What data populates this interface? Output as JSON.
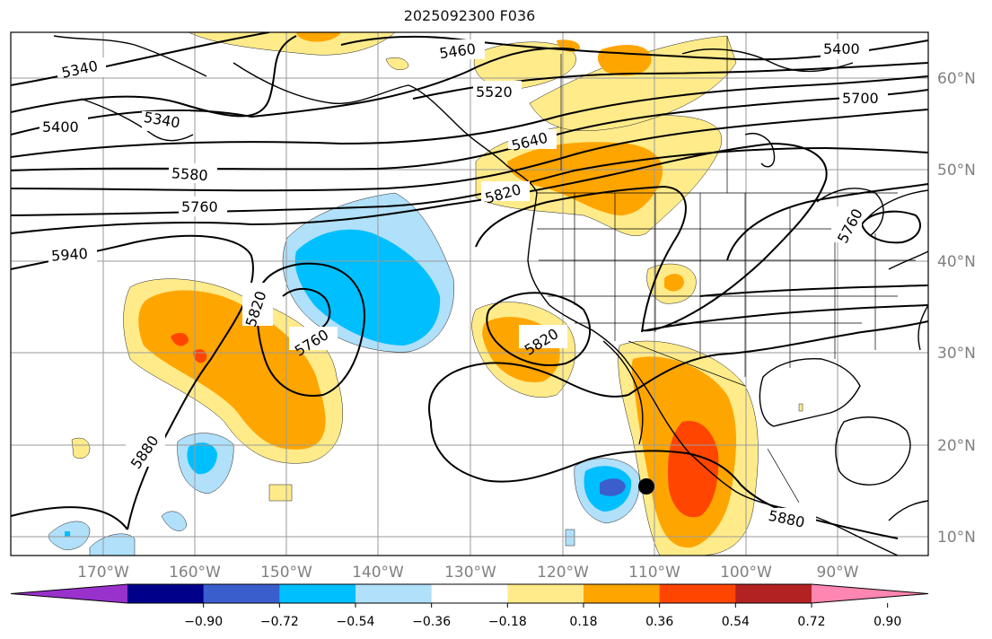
{
  "title": "2025092300 F036",
  "map": {
    "lon_labels": [
      "170°W",
      "160°W",
      "150°W",
      "140°W",
      "130°W",
      "120°W",
      "110°W",
      "100°W",
      "90°W"
    ],
    "lat_labels": [
      "60°N",
      "50°N",
      "40°N",
      "30°N",
      "20°N",
      "10°N"
    ],
    "contour_labels": [
      {
        "text": "5340",
        "id": "contour-5340-west"
      },
      {
        "text": "5460",
        "id": "contour-5460"
      },
      {
        "text": "5400",
        "id": "contour-5400-east"
      },
      {
        "text": "5520",
        "id": "contour-5520"
      },
      {
        "text": "5700",
        "id": "contour-5700"
      },
      {
        "text": "5400",
        "id": "contour-5400-west"
      },
      {
        "text": "5340",
        "id": "contour-5340-mid"
      },
      {
        "text": "5640",
        "id": "contour-5640"
      },
      {
        "text": "5580",
        "id": "contour-5580"
      },
      {
        "text": "5820",
        "id": "contour-5820-coast"
      },
      {
        "text": "5760",
        "id": "contour-5760-west"
      },
      {
        "text": "5760",
        "id": "contour-5760-east"
      },
      {
        "text": "5940",
        "id": "contour-5940"
      },
      {
        "text": "5820",
        "id": "contour-5820-low"
      },
      {
        "text": "5760",
        "id": "contour-5760-low"
      },
      {
        "text": "5820",
        "id": "contour-5820-baja"
      },
      {
        "text": "5880",
        "id": "contour-5880-west"
      },
      {
        "text": "5880",
        "id": "contour-5880-east"
      }
    ],
    "marker": {
      "label": "storm-position",
      "color": "#000000"
    }
  },
  "colorbar": {
    "ticks": [
      "−0.90",
      "−0.72",
      "−0.54",
      "−0.36",
      "−0.18",
      "0.18",
      "0.36",
      "0.54",
      "0.72",
      "0.90"
    ],
    "colors": [
      "#9932cc",
      "#00008b",
      "#3a5fcd",
      "#00bfff",
      "#b0e0fa",
      "#ffffff",
      "#ffeb8a",
      "#ffa500",
      "#ff4500",
      "#b22222",
      "#ff86b0"
    ]
  }
}
